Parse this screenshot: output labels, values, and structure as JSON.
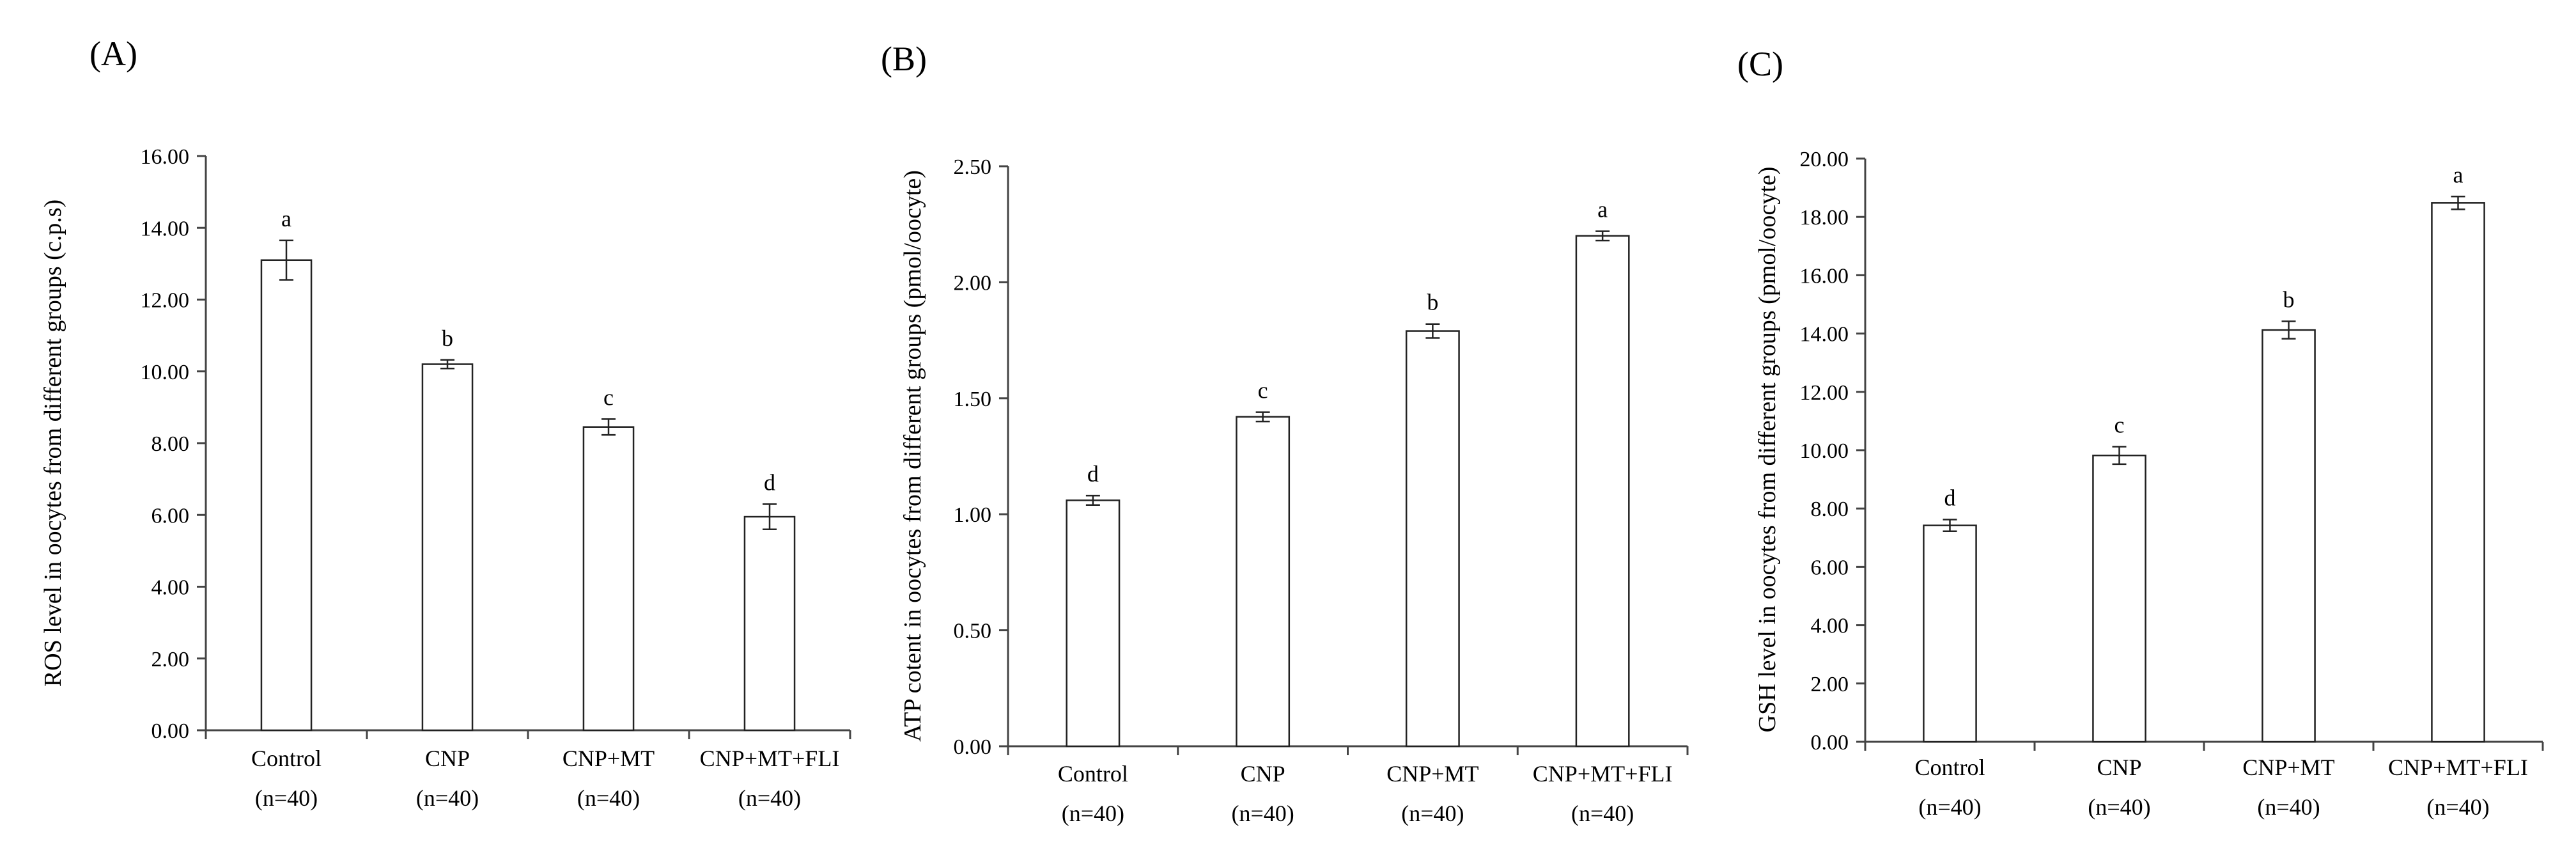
{
  "chart_data": [
    {
      "type": "bar",
      "panel_label": "(A)",
      "title": "",
      "ylabel": "ROS level in oocytes from different groups (c.p.s)",
      "xlabel": "",
      "ylim": [
        0,
        16
      ],
      "yticks": [
        "0.00",
        "2.00",
        "4.00",
        "6.00",
        "8.00",
        "10.00",
        "12.00",
        "14.00",
        "16.00"
      ],
      "categories": [
        {
          "name": "Control",
          "n": "(n=40)"
        },
        {
          "name": "CNP",
          "n": "(n=40)"
        },
        {
          "name": "CNP+MT",
          "n": "(n=40)"
        },
        {
          "name": "CNP+MT+FLI",
          "n": "(n=40)"
        }
      ],
      "values": [
        13.1,
        10.2,
        8.45,
        5.95
      ],
      "errors": [
        0.55,
        0.12,
        0.22,
        0.35
      ],
      "significance": [
        "a",
        "b",
        "c",
        "d"
      ],
      "grid": false,
      "bar_color": "#ffffff"
    },
    {
      "type": "bar",
      "panel_label": "(B)",
      "title": "",
      "ylabel": "ATP cotent in oocytes from different groups (pmol/oocyte)",
      "xlabel": "",
      "ylim": [
        0,
        2.5
      ],
      "yticks": [
        "0.00",
        "0.50",
        "1.00",
        "1.50",
        "2.00",
        "2.50"
      ],
      "categories": [
        {
          "name": "Control",
          "n": "(n=40)"
        },
        {
          "name": "CNP",
          "n": "(n=40)"
        },
        {
          "name": "CNP+MT",
          "n": "(n=40)"
        },
        {
          "name": "CNP+MT+FLI",
          "n": "(n=40)"
        }
      ],
      "values": [
        1.06,
        1.42,
        1.79,
        2.2
      ],
      "errors": [
        0.02,
        0.02,
        0.03,
        0.02
      ],
      "significance": [
        "d",
        "c",
        "b",
        "a"
      ],
      "grid": false,
      "bar_color": "#ffffff"
    },
    {
      "type": "bar",
      "panel_label": "(C)",
      "title": "",
      "ylabel": "GSH level in oocytes from different groups (pmol/oocyte)",
      "xlabel": "",
      "ylim": [
        0,
        20
      ],
      "yticks": [
        "0.00",
        "2.00",
        "4.00",
        "6.00",
        "8.00",
        "10.00",
        "12.00",
        "14.00",
        "16.00",
        "18.00",
        "20.00"
      ],
      "categories": [
        {
          "name": "Control",
          "n": "(n=40)"
        },
        {
          "name": "CNP",
          "n": "(n=40)"
        },
        {
          "name": "CNP+MT",
          "n": "(n=40)"
        },
        {
          "name": "CNP+MT+FLI",
          "n": "(n=40)"
        }
      ],
      "values": [
        7.42,
        9.82,
        14.12,
        18.48
      ],
      "errors": [
        0.2,
        0.3,
        0.3,
        0.22
      ],
      "significance": [
        "d",
        "c",
        "b",
        "a"
      ],
      "grid": false,
      "bar_color": "#ffffff"
    }
  ]
}
